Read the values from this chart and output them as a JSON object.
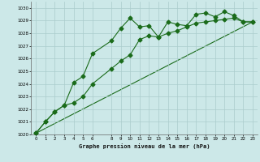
{
  "title": "Graphe pression niveau de la mer (hPa)",
  "bg_color": "#cce8e8",
  "grid_color": "#aacccc",
  "line_color": "#1a6b1a",
  "xlim": [
    -0.5,
    23.5
  ],
  "ylim": [
    1020,
    1030.5
  ],
  "xticks": [
    0,
    1,
    2,
    3,
    4,
    5,
    6,
    8,
    9,
    10,
    11,
    12,
    13,
    14,
    15,
    16,
    17,
    18,
    19,
    20,
    21,
    22,
    23
  ],
  "yticks": [
    1020,
    1021,
    1022,
    1023,
    1024,
    1025,
    1026,
    1027,
    1028,
    1029,
    1030
  ],
  "series1_x": [
    0,
    1,
    2,
    3,
    4,
    5,
    6,
    8,
    9,
    10,
    11,
    12,
    13,
    14,
    15,
    16,
    17,
    18,
    19,
    20,
    21,
    22,
    23
  ],
  "series1_y": [
    1020.1,
    1021.0,
    1021.8,
    1022.3,
    1024.1,
    1024.6,
    1026.4,
    1027.4,
    1028.4,
    1029.2,
    1028.5,
    1028.6,
    1027.7,
    1028.9,
    1028.7,
    1028.6,
    1029.5,
    1029.6,
    1029.3,
    1029.7,
    1029.4,
    1028.9,
    1028.9
  ],
  "series2_x": [
    0,
    1,
    2,
    3,
    4,
    5,
    6,
    8,
    9,
    10,
    11,
    12,
    13,
    14,
    15,
    16,
    17,
    18,
    19,
    20,
    21,
    22,
    23
  ],
  "series2_y": [
    1020.1,
    1021.0,
    1021.8,
    1022.3,
    1022.5,
    1023.0,
    1024.0,
    1025.2,
    1025.8,
    1026.3,
    1027.5,
    1027.8,
    1027.7,
    1028.0,
    1028.2,
    1028.5,
    1028.8,
    1028.9,
    1029.0,
    1029.1,
    1029.2,
    1028.9,
    1028.9
  ],
  "series3_x": [
    0,
    23
  ],
  "series3_y": [
    1020.1,
    1028.9
  ],
  "marker": "D",
  "markersize": 2.5
}
